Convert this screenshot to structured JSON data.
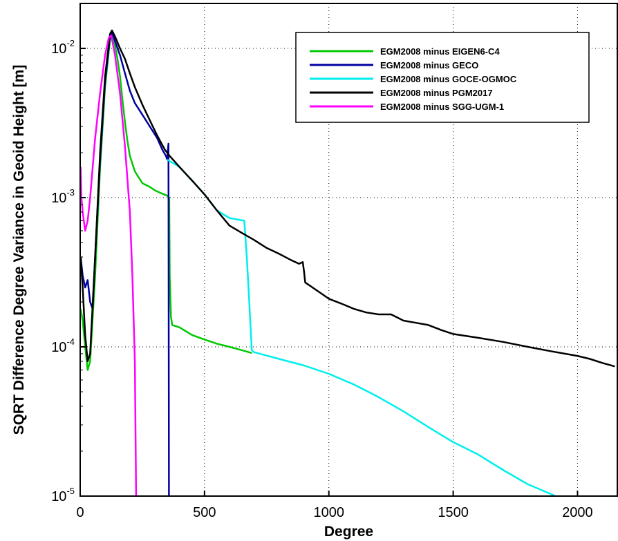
{
  "chart_data": {
    "type": "line",
    "title": "",
    "xlabel": "Degree",
    "ylabel": "SQRT Difference Degree Variance in Geoid Height [m]",
    "xlim": [
      0,
      2160
    ],
    "ylim": [
      1e-05,
      0.02
    ],
    "y_scale": "log",
    "grid": true,
    "legend_position": "top-right",
    "x_ticks": [
      0,
      500,
      1000,
      1500,
      2000
    ],
    "x_tick_labels": [
      "0",
      "500",
      "1000",
      "1500",
      "2000"
    ],
    "y_ticks": [
      {
        "value": 1e-05,
        "base": "10",
        "exp": "-5"
      },
      {
        "value": 0.0001,
        "base": "10",
        "exp": "-4"
      },
      {
        "value": 0.001,
        "base": "10",
        "exp": "-3"
      },
      {
        "value": 0.01,
        "base": "10",
        "exp": "-2"
      }
    ],
    "series": [
      {
        "name": "EGM2008 minus EIGEN6-C4",
        "color": "#00c800",
        "points": [
          [
            2,
            0.00018
          ],
          [
            10,
            0.00015
          ],
          [
            20,
            0.0001
          ],
          [
            30,
            7e-05
          ],
          [
            40,
            8e-05
          ],
          [
            60,
            0.0003
          ],
          [
            80,
            0.0016
          ],
          [
            100,
            0.0055
          ],
          [
            120,
            0.0115
          ],
          [
            128,
            0.012
          ],
          [
            140,
            0.0105
          ],
          [
            150,
            0.0085
          ],
          [
            160,
            0.0065
          ],
          [
            170,
            0.0045
          ],
          [
            180,
            0.0032
          ],
          [
            190,
            0.0024
          ],
          [
            200,
            0.0019
          ],
          [
            220,
            0.0015
          ],
          [
            250,
            0.00125
          ],
          [
            280,
            0.00118
          ],
          [
            300,
            0.00112
          ],
          [
            320,
            0.00108
          ],
          [
            350,
            0.00103
          ],
          [
            358,
            0.001
          ],
          [
            360,
            0.0003
          ],
          [
            365,
            0.00016
          ],
          [
            370,
            0.00014
          ],
          [
            400,
            0.000135
          ],
          [
            450,
            0.00012
          ],
          [
            500,
            0.000112
          ],
          [
            550,
            0.000105
          ],
          [
            600,
            0.0001
          ],
          [
            650,
            9.5e-05
          ],
          [
            690,
            9.1e-05
          ]
        ]
      },
      {
        "name": "EGM2008 minus GECO",
        "color": "#0000a0",
        "points": [
          [
            2,
            0.0004
          ],
          [
            10,
            0.0003
          ],
          [
            20,
            0.00025
          ],
          [
            30,
            0.00028
          ],
          [
            40,
            0.0002
          ],
          [
            50,
            0.00018
          ],
          [
            60,
            0.0004
          ],
          [
            80,
            0.0018
          ],
          [
            100,
            0.006
          ],
          [
            120,
            0.012
          ],
          [
            128,
            0.0128
          ],
          [
            140,
            0.0112
          ],
          [
            160,
            0.009
          ],
          [
            180,
            0.0068
          ],
          [
            200,
            0.0052
          ],
          [
            220,
            0.0043
          ],
          [
            250,
            0.0036
          ],
          [
            280,
            0.003
          ],
          [
            310,
            0.0025
          ],
          [
            330,
            0.0021
          ],
          [
            345,
            0.0019
          ],
          [
            350,
            0.0018
          ],
          [
            355,
            0.0023
          ],
          [
            356,
            0.0001
          ],
          [
            357,
            1e-05
          ]
        ]
      },
      {
        "name": "EGM2008 minus GOCE-OGMOC",
        "color": "#00eeee",
        "points": [
          [
            350,
            0.0018
          ],
          [
            400,
            0.0016
          ],
          [
            450,
            0.0013
          ],
          [
            500,
            0.00105
          ],
          [
            520,
            0.00095
          ],
          [
            550,
            0.00082
          ],
          [
            600,
            0.00073
          ],
          [
            640,
            0.00071
          ],
          [
            660,
            0.0007
          ],
          [
            670,
            0.0004
          ],
          [
            680,
            0.0002
          ],
          [
            690,
            9.5e-05
          ],
          [
            700,
            9.2e-05
          ],
          [
            800,
            8.3e-05
          ],
          [
            900,
            7.5e-05
          ],
          [
            1000,
            6.6e-05
          ],
          [
            1100,
            5.6e-05
          ],
          [
            1200,
            4.6e-05
          ],
          [
            1300,
            3.7e-05
          ],
          [
            1400,
            2.9e-05
          ],
          [
            1500,
            2.3e-05
          ],
          [
            1600,
            1.9e-05
          ],
          [
            1700,
            1.5e-05
          ],
          [
            1800,
            1.2e-05
          ],
          [
            1900,
            1.02e-05
          ],
          [
            1910,
            1e-05
          ]
        ]
      },
      {
        "name": "EGM2008 minus PGM2017",
        "color": "#000000",
        "points": [
          [
            2,
            0.0004
          ],
          [
            10,
            0.00025
          ],
          [
            20,
            0.00012
          ],
          [
            30,
            8e-05
          ],
          [
            40,
            9e-05
          ],
          [
            60,
            0.0004
          ],
          [
            80,
            0.002
          ],
          [
            100,
            0.0065
          ],
          [
            120,
            0.0125
          ],
          [
            128,
            0.0132
          ],
          [
            140,
            0.012
          ],
          [
            160,
            0.01
          ],
          [
            180,
            0.0085
          ],
          [
            200,
            0.0068
          ],
          [
            220,
            0.0055
          ],
          [
            250,
            0.0042
          ],
          [
            280,
            0.0033
          ],
          [
            310,
            0.0026
          ],
          [
            340,
            0.0021
          ],
          [
            360,
            0.0019
          ],
          [
            400,
            0.0016
          ],
          [
            450,
            0.0013
          ],
          [
            500,
            0.00105
          ],
          [
            520,
            0.00095
          ],
          [
            550,
            0.00082
          ],
          [
            600,
            0.00065
          ],
          [
            650,
            0.00058
          ],
          [
            700,
            0.00052
          ],
          [
            750,
            0.00046
          ],
          [
            800,
            0.00042
          ],
          [
            850,
            0.00038
          ],
          [
            880,
            0.00036
          ],
          [
            895,
            0.00037
          ],
          [
            900,
            0.00032
          ],
          [
            905,
            0.00027
          ],
          [
            950,
            0.00024
          ],
          [
            1000,
            0.00021
          ],
          [
            1050,
            0.000195
          ],
          [
            1100,
            0.00018
          ],
          [
            1150,
            0.00017
          ],
          [
            1200,
            0.000165
          ],
          [
            1250,
            0.000165
          ],
          [
            1300,
            0.00015
          ],
          [
            1350,
            0.000145
          ],
          [
            1400,
            0.00014
          ],
          [
            1450,
            0.00013
          ],
          [
            1500,
            0.000122
          ],
          [
            1600,
            0.000115
          ],
          [
            1700,
            0.000108
          ],
          [
            1800,
            0.0001
          ],
          [
            1900,
            9.3e-05
          ],
          [
            2000,
            8.7e-05
          ],
          [
            2050,
            8.3e-05
          ],
          [
            2100,
            7.8e-05
          ],
          [
            2150,
            7.4e-05
          ]
        ]
      },
      {
        "name": "EGM2008 minus SGG-UGM-1",
        "color": "#ff00ff",
        "points": [
          [
            2,
            0.0016
          ],
          [
            5,
            0.001
          ],
          [
            10,
            0.0008
          ],
          [
            20,
            0.0006
          ],
          [
            30,
            0.0007
          ],
          [
            40,
            0.001
          ],
          [
            60,
            0.0025
          ],
          [
            80,
            0.005
          ],
          [
            100,
            0.009
          ],
          [
            115,
            0.0118
          ],
          [
            125,
            0.0122
          ],
          [
            140,
            0.009
          ],
          [
            160,
            0.005
          ],
          [
            180,
            0.0022
          ],
          [
            200,
            0.0008
          ],
          [
            210,
            0.0003
          ],
          [
            220,
            8e-05
          ],
          [
            225,
            1e-05
          ]
        ]
      }
    ]
  }
}
